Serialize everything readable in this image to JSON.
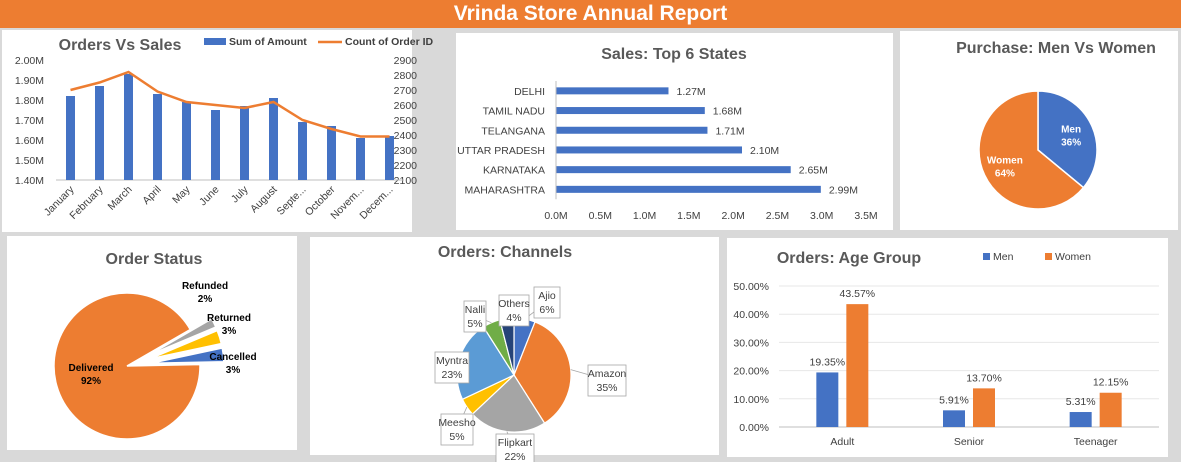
{
  "title": "Vrinda Store Annual Report",
  "colors": {
    "orange": "#ed7d31",
    "blue": "#4472c4",
    "gray": "#a5a5a5",
    "gold": "#ffc000",
    "lightblue": "#5b9bd5",
    "green": "#70ad47",
    "navy": "#264478"
  },
  "chart_data": [
    {
      "type": "bar",
      "title": "Orders Vs Sales",
      "categories": [
        "January",
        "February",
        "March",
        "April",
        "May",
        "June",
        "July",
        "August",
        "September",
        "October",
        "November",
        "December"
      ],
      "category_labels": [
        "January",
        "February",
        "March",
        "April",
        "May",
        "June",
        "July",
        "August",
        "Septe...",
        "October",
        "Novem...",
        "Decem..."
      ],
      "series": [
        {
          "name": "Sum of Amount",
          "type": "bar",
          "axis": "left",
          "values": [
            1.82,
            1.87,
            1.93,
            1.83,
            1.79,
            1.75,
            1.77,
            1.81,
            1.69,
            1.67,
            1.61,
            1.62
          ]
        },
        {
          "name": "Count of Order ID",
          "type": "line",
          "axis": "right",
          "values": [
            2700,
            2750,
            2820,
            2690,
            2620,
            2600,
            2580,
            2620,
            2500,
            2440,
            2390,
            2390
          ]
        }
      ],
      "y_left": {
        "min": 1.4,
        "max": 2.0,
        "ticks": [
          "1.40M",
          "1.50M",
          "1.60M",
          "1.70M",
          "1.80M",
          "1.90M",
          "2.00M"
        ]
      },
      "y_right": {
        "min": 2100,
        "max": 2900,
        "ticks": [
          "2100",
          "2200",
          "2300",
          "2400",
          "2500",
          "2600",
          "2700",
          "2800",
          "2900"
        ]
      }
    },
    {
      "type": "bar",
      "orientation": "horizontal",
      "title": "Sales: Top 6 States",
      "categories": [
        "DELHI",
        "TAMIL NADU",
        "TELANGANA",
        "UTTAR PRADESH",
        "KARNATAKA",
        "MAHARASHTRA"
      ],
      "values": [
        1.27,
        1.68,
        1.71,
        2.1,
        2.65,
        2.99
      ],
      "value_labels": [
        "1.27M",
        "1.68M",
        "1.71M",
        "2.10M",
        "2.65M",
        "2.99M"
      ],
      "xlim": [
        0,
        3.5
      ],
      "x_ticks": [
        "0.0M",
        "0.5M",
        "1.0M",
        "1.5M",
        "2.0M",
        "2.5M",
        "3.0M",
        "3.5M"
      ]
    },
    {
      "type": "pie",
      "title": "Purchase: Men Vs Women",
      "slices": [
        {
          "name": "Men",
          "value": 36,
          "label": "36%"
        },
        {
          "name": "Women",
          "value": 64,
          "label": "64%"
        }
      ]
    },
    {
      "type": "pie",
      "title": "Order Status",
      "slices": [
        {
          "name": "Delivered",
          "value": 92,
          "label": "92%"
        },
        {
          "name": "Refunded",
          "value": 2,
          "label": "2%"
        },
        {
          "name": "Returned",
          "value": 3,
          "label": "3%"
        },
        {
          "name": "Cancelled",
          "value": 3,
          "label": "3%"
        }
      ]
    },
    {
      "type": "pie",
      "title": "Orders: Channels",
      "slices": [
        {
          "name": "Ajio",
          "value": 6,
          "label": "6%"
        },
        {
          "name": "Amazon",
          "value": 35,
          "label": "35%"
        },
        {
          "name": "Flipkart",
          "value": 22,
          "label": "22%"
        },
        {
          "name": "Meesho",
          "value": 5,
          "label": "5%"
        },
        {
          "name": "Myntra",
          "value": 23,
          "label": "23%"
        },
        {
          "name": "Nalli",
          "value": 5,
          "label": "5%"
        },
        {
          "name": "Others",
          "value": 4,
          "label": "4%"
        }
      ]
    },
    {
      "type": "bar",
      "title": "Orders: Age Group",
      "categories": [
        "Adult",
        "Senior",
        "Teenager"
      ],
      "series": [
        {
          "name": "Men",
          "values": [
            19.35,
            5.91,
            5.31
          ],
          "labels": [
            "19.35%",
            "5.91%",
            "5.31%"
          ]
        },
        {
          "name": "Women",
          "values": [
            43.57,
            13.7,
            12.15
          ],
          "labels": [
            "43.57%",
            "13.70%",
            "12.15%"
          ]
        }
      ],
      "ylim": [
        0,
        50
      ],
      "y_ticks": [
        "0.00%",
        "10.00%",
        "20.00%",
        "30.00%",
        "40.00%",
        "50.00%"
      ]
    }
  ]
}
